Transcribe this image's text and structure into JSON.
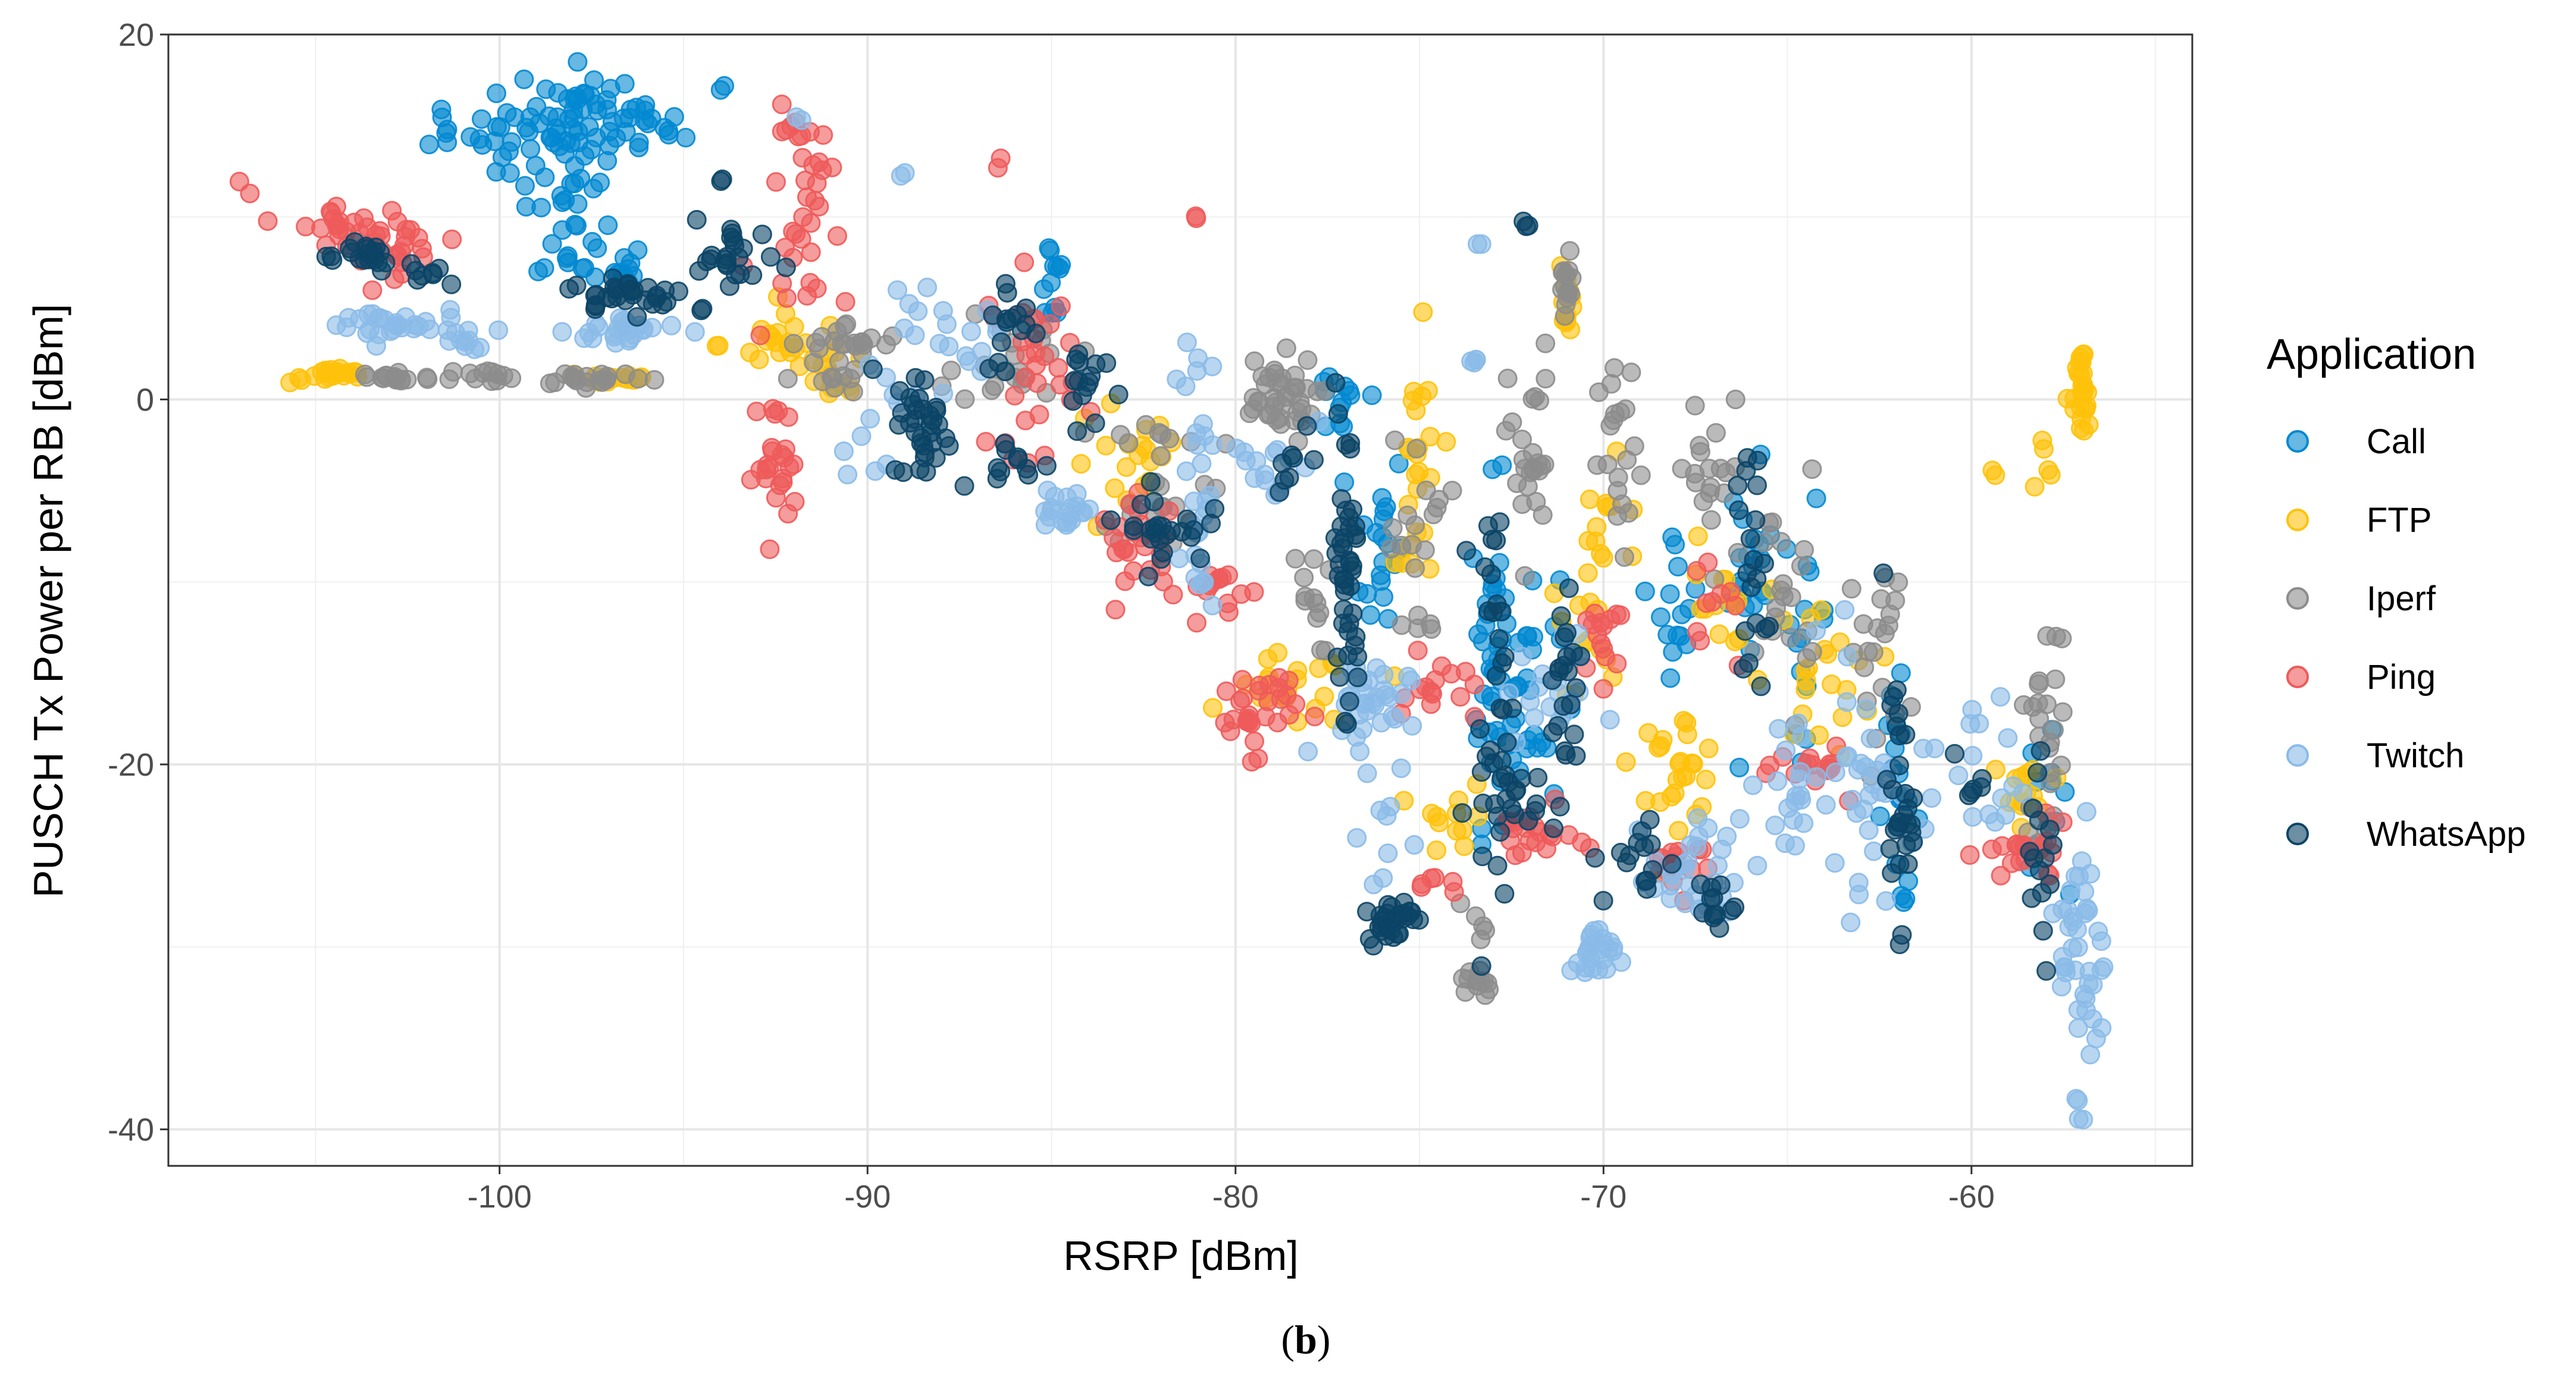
{
  "chart_data": {
    "type": "scatter",
    "title": "",
    "xlabel": "RSRP [dBm]",
    "ylabel": "PUSCH Tx Power per RB [dBm]",
    "xlim": [
      -109.0,
      -54.0
    ],
    "ylim": [
      -42.0,
      20.0
    ],
    "x_ticks": [
      -100,
      -90,
      -80,
      -70,
      -60
    ],
    "y_ticks": [
      -40,
      -20,
      0,
      20
    ],
    "grid": true,
    "legend": {
      "title": "Application",
      "position": "right"
    },
    "caption_open": "(",
    "caption_letter": "b",
    "caption_close": ")",
    "series": [
      {
        "name": "Call",
        "color": "#0288D1",
        "clusters": [
          {
            "x": -101.5,
            "y": 14.5,
            "xs": 0.2,
            "ys": 1.0,
            "n": 6
          },
          {
            "x": -99.0,
            "y": 14.5,
            "xs": 0.9,
            "ys": 1.5,
            "n": 40
          },
          {
            "x": -97.5,
            "y": 15.5,
            "xs": 0.6,
            "ys": 1.2,
            "n": 30
          },
          {
            "x": -96.0,
            "y": 14.8,
            "xs": 0.5,
            "ys": 0.8,
            "n": 15
          },
          {
            "x": -98.0,
            "y": 10.0,
            "xs": 0.5,
            "ys": 2.0,
            "n": 25
          },
          {
            "x": -97.0,
            "y": 7.0,
            "xs": 0.5,
            "ys": 0.8,
            "n": 15
          },
          {
            "x": -94.0,
            "y": 17.3,
            "xs": 0.1,
            "ys": 0.2,
            "n": 2
          },
          {
            "x": -85.0,
            "y": 6.5,
            "xs": 0.2,
            "ys": 1.6,
            "n": 12
          },
          {
            "x": -77.0,
            "y": 0.0,
            "xs": 0.6,
            "ys": 1.2,
            "n": 12
          },
          {
            "x": -76.0,
            "y": -8.0,
            "xs": 0.3,
            "ys": 3.0,
            "n": 20
          },
          {
            "x": -73.0,
            "y": -14.0,
            "xs": 0.3,
            "ys": 4.5,
            "n": 40
          },
          {
            "x": -72.0,
            "y": -16.0,
            "xs": 0.4,
            "ys": 3.5,
            "n": 25
          },
          {
            "x": -68.0,
            "y": -11.0,
            "xs": 0.3,
            "ys": 2.0,
            "n": 15
          },
          {
            "x": -66.0,
            "y": -10.0,
            "xs": 0.3,
            "ys": 3.0,
            "n": 20
          },
          {
            "x": -64.5,
            "y": -12.0,
            "xs": 0.3,
            "ys": 3.0,
            "n": 15
          },
          {
            "x": -62.0,
            "y": -22.0,
            "xs": 0.3,
            "ys": 3.0,
            "n": 20
          },
          {
            "x": -58.0,
            "y": -22.0,
            "xs": 0.3,
            "ys": 2.0,
            "n": 10
          }
        ]
      },
      {
        "name": "FTP",
        "color": "#FFC20A",
        "clusters": [
          {
            "x": -104.5,
            "y": 1.3,
            "xs": 0.6,
            "ys": 0.2,
            "n": 20
          },
          {
            "x": -97.0,
            "y": 1.2,
            "xs": 0.7,
            "ys": 0.2,
            "n": 15
          },
          {
            "x": -92.0,
            "y": 3.0,
            "xs": 1.0,
            "ys": 0.8,
            "n": 25
          },
          {
            "x": -91.0,
            "y": 1.0,
            "xs": 0.5,
            "ys": 0.8,
            "n": 10
          },
          {
            "x": -83.0,
            "y": -4.0,
            "xs": 0.8,
            "ys": 2.0,
            "n": 20
          },
          {
            "x": -78.5,
            "y": -16.0,
            "xs": 0.8,
            "ys": 1.0,
            "n": 20
          },
          {
            "x": -75.0,
            "y": -5.0,
            "xs": 0.3,
            "ys": 4.0,
            "n": 25
          },
          {
            "x": -74.0,
            "y": -23.0,
            "xs": 0.5,
            "ys": 1.0,
            "n": 12
          },
          {
            "x": -71.0,
            "y": 6.0,
            "xs": 0.1,
            "ys": 1.2,
            "n": 12
          },
          {
            "x": -70.0,
            "y": -10.0,
            "xs": 0.6,
            "ys": 3.0,
            "n": 25
          },
          {
            "x": -68.0,
            "y": -20.0,
            "xs": 0.6,
            "ys": 1.5,
            "n": 25
          },
          {
            "x": -67.0,
            "y": -12.0,
            "xs": 0.5,
            "ys": 2.0,
            "n": 15
          },
          {
            "x": -64.0,
            "y": -15.0,
            "xs": 0.7,
            "ys": 2.0,
            "n": 20
          },
          {
            "x": -59.5,
            "y": -4.0,
            "xs": 0.1,
            "ys": 0.2,
            "n": 2
          },
          {
            "x": -58.0,
            "y": -3.0,
            "xs": 0.3,
            "ys": 1.5,
            "n": 6
          },
          {
            "x": -57.0,
            "y": 0.0,
            "xs": 0.1,
            "ys": 1.5,
            "n": 25
          },
          {
            "x": -58.5,
            "y": -22.0,
            "xs": 0.5,
            "ys": 1.5,
            "n": 15
          }
        ]
      },
      {
        "name": "Iperf",
        "color": "#8C8C8C",
        "clusters": [
          {
            "x": -103.0,
            "y": 1.2,
            "xs": 0.6,
            "ys": 0.2,
            "n": 15
          },
          {
            "x": -100.0,
            "y": 1.3,
            "xs": 0.8,
            "ys": 0.2,
            "n": 12
          },
          {
            "x": -97.5,
            "y": 1.2,
            "xs": 0.8,
            "ys": 0.2,
            "n": 20
          },
          {
            "x": -90.5,
            "y": 3.0,
            "xs": 0.8,
            "ys": 0.6,
            "n": 20
          },
          {
            "x": -91.0,
            "y": 1.0,
            "xs": 0.4,
            "ys": 0.6,
            "n": 10
          },
          {
            "x": -86.0,
            "y": 2.5,
            "xs": 0.8,
            "ys": 1.5,
            "n": 20
          },
          {
            "x": -82.0,
            "y": -4.0,
            "xs": 0.8,
            "ys": 2.0,
            "n": 25
          },
          {
            "x": -79.0,
            "y": 0.0,
            "xs": 0.6,
            "ys": 1.2,
            "n": 40
          },
          {
            "x": -78.0,
            "y": -11.0,
            "xs": 0.3,
            "ys": 1.5,
            "n": 12
          },
          {
            "x": -75.0,
            "y": -8.0,
            "xs": 0.4,
            "ys": 3.0,
            "n": 20
          },
          {
            "x": -73.5,
            "y": -32.0,
            "xs": 0.2,
            "ys": 0.5,
            "n": 12
          },
          {
            "x": -73.5,
            "y": -28.0,
            "xs": 0.2,
            "ys": 1.0,
            "n": 5
          },
          {
            "x": -72.0,
            "y": -3.0,
            "xs": 0.3,
            "ys": 3.0,
            "n": 25
          },
          {
            "x": -71.0,
            "y": 6.0,
            "xs": 0.1,
            "ys": 1.0,
            "n": 15
          },
          {
            "x": -69.5,
            "y": -4.0,
            "xs": 0.3,
            "ys": 3.0,
            "n": 20
          },
          {
            "x": -67.0,
            "y": -5.0,
            "xs": 0.6,
            "ys": 3.0,
            "n": 20
          },
          {
            "x": -65.0,
            "y": -10.0,
            "xs": 0.4,
            "ys": 3.0,
            "n": 20
          },
          {
            "x": -62.5,
            "y": -14.0,
            "xs": 0.4,
            "ys": 3.0,
            "n": 20
          },
          {
            "x": -58.0,
            "y": -18.0,
            "xs": 0.3,
            "ys": 3.0,
            "n": 25
          }
        ]
      },
      {
        "name": "Ping",
        "color": "#EE5A5A",
        "clusters": [
          {
            "x": -107.0,
            "y": 11.5,
            "xs": 0.1,
            "ys": 0.2,
            "n": 2
          },
          {
            "x": -104.5,
            "y": 9.5,
            "xs": 0.6,
            "ys": 0.7,
            "n": 15
          },
          {
            "x": -103.0,
            "y": 8.5,
            "xs": 1.0,
            "ys": 0.8,
            "n": 30
          },
          {
            "x": -92.5,
            "y": -3.5,
            "xs": 0.3,
            "ys": 1.8,
            "n": 25
          },
          {
            "x": -91.5,
            "y": 12.0,
            "xs": 0.6,
            "ys": 2.0,
            "n": 25
          },
          {
            "x": -91.5,
            "y": 7.0,
            "xs": 0.5,
            "ys": 2.0,
            "n": 12
          },
          {
            "x": -85.5,
            "y": 2.0,
            "xs": 0.6,
            "ys": 2.5,
            "n": 30
          },
          {
            "x": -86.5,
            "y": 13.0,
            "xs": 0.1,
            "ys": 0.2,
            "n": 2
          },
          {
            "x": -82.5,
            "y": -8.0,
            "xs": 0.6,
            "ys": 1.2,
            "n": 25
          },
          {
            "x": -80.5,
            "y": -10.5,
            "xs": 0.5,
            "ys": 0.8,
            "n": 15
          },
          {
            "x": -81.0,
            "y": 10.0,
            "xs": 0.1,
            "ys": 0.2,
            "n": 2
          },
          {
            "x": -79.5,
            "y": -17.0,
            "xs": 0.6,
            "ys": 1.2,
            "n": 30
          },
          {
            "x": -74.5,
            "y": -16.0,
            "xs": 0.5,
            "ys": 1.0,
            "n": 15
          },
          {
            "x": -74.5,
            "y": -26.5,
            "xs": 0.3,
            "ys": 0.3,
            "n": 6
          },
          {
            "x": -72.0,
            "y": -24.0,
            "xs": 0.6,
            "ys": 0.8,
            "n": 20
          },
          {
            "x": -70.0,
            "y": -13.0,
            "xs": 0.4,
            "ys": 1.2,
            "n": 15
          },
          {
            "x": -68.0,
            "y": -25.0,
            "xs": 0.5,
            "ys": 1.0,
            "n": 15
          },
          {
            "x": -67.0,
            "y": -13.0,
            "xs": 0.4,
            "ys": 1.5,
            "n": 10
          },
          {
            "x": -64.0,
            "y": -20.0,
            "xs": 0.6,
            "ys": 0.8,
            "n": 15
          },
          {
            "x": -58.5,
            "y": -25.0,
            "xs": 0.6,
            "ys": 0.8,
            "n": 20
          }
        ]
      },
      {
        "name": "Twitch",
        "color": "#8BBBE8",
        "clusters": [
          {
            "x": -103.0,
            "y": 4.0,
            "xs": 1.0,
            "ys": 0.5,
            "n": 30
          },
          {
            "x": -101.0,
            "y": 3.0,
            "xs": 0.5,
            "ys": 0.3,
            "n": 8
          },
          {
            "x": -96.5,
            "y": 3.8,
            "xs": 0.8,
            "ys": 0.5,
            "n": 25
          },
          {
            "x": -92.0,
            "y": 15.3,
            "xs": 0.1,
            "ys": 0.2,
            "n": 2
          },
          {
            "x": -89.0,
            "y": 12.5,
            "xs": 0.1,
            "ys": 0.2,
            "n": 2
          },
          {
            "x": -88.0,
            "y": 3.0,
            "xs": 0.8,
            "ys": 1.2,
            "n": 20
          },
          {
            "x": -90.0,
            "y": -1.0,
            "xs": 0.6,
            "ys": 1.5,
            "n": 10
          },
          {
            "x": -84.5,
            "y": -6.0,
            "xs": 0.5,
            "ys": 0.6,
            "n": 20
          },
          {
            "x": -81.0,
            "y": -4.0,
            "xs": 0.2,
            "ys": 4.0,
            "n": 30
          },
          {
            "x": -79.0,
            "y": -3.0,
            "xs": 0.6,
            "ys": 1.5,
            "n": 15
          },
          {
            "x": -76.5,
            "y": -17.0,
            "xs": 0.6,
            "ys": 1.5,
            "n": 35
          },
          {
            "x": -76.0,
            "y": -24.0,
            "xs": 0.3,
            "ys": 1.5,
            "n": 8
          },
          {
            "x": -73.5,
            "y": 8.5,
            "xs": 0.1,
            "ys": 0.2,
            "n": 2
          },
          {
            "x": -73.5,
            "y": 2.0,
            "xs": 0.1,
            "ys": 1.0,
            "n": 4
          },
          {
            "x": -71.5,
            "y": -16.0,
            "xs": 0.6,
            "ys": 1.5,
            "n": 20
          },
          {
            "x": -70.3,
            "y": -30.5,
            "xs": 0.3,
            "ys": 0.8,
            "n": 25
          },
          {
            "x": -67.5,
            "y": -26.0,
            "xs": 0.6,
            "ys": 1.5,
            "n": 30
          },
          {
            "x": -65.0,
            "y": -22.0,
            "xs": 0.5,
            "ys": 2.5,
            "n": 20
          },
          {
            "x": -63.0,
            "y": -20.0,
            "xs": 0.5,
            "ys": 4.0,
            "n": 30
          },
          {
            "x": -60.0,
            "y": -21.0,
            "xs": 0.8,
            "ys": 2.5,
            "n": 20
          },
          {
            "x": -57.0,
            "y": -30.0,
            "xs": 0.3,
            "ys": 3.5,
            "n": 40
          },
          {
            "x": -56.5,
            "y": -34.5,
            "xs": 0.2,
            "ys": 0.5,
            "n": 3
          },
          {
            "x": -57.0,
            "y": -39.3,
            "xs": 0.1,
            "ys": 0.2,
            "n": 2
          }
        ]
      },
      {
        "name": "WhatsApp",
        "color": "#0B4466",
        "clusters": [
          {
            "x": -104.0,
            "y": 8.0,
            "xs": 0.7,
            "ys": 0.5,
            "n": 20
          },
          {
            "x": -102.0,
            "y": 7.0,
            "xs": 0.5,
            "ys": 0.4,
            "n": 8
          },
          {
            "x": -96.5,
            "y": 5.8,
            "xs": 0.8,
            "ys": 0.5,
            "n": 30
          },
          {
            "x": -93.5,
            "y": 7.5,
            "xs": 0.6,
            "ys": 1.2,
            "n": 25
          },
          {
            "x": -94.0,
            "y": 12.0,
            "xs": 0.1,
            "ys": 0.2,
            "n": 2
          },
          {
            "x": -88.5,
            "y": -1.5,
            "xs": 0.4,
            "ys": 1.5,
            "n": 35
          },
          {
            "x": -86.0,
            "y": 4.0,
            "xs": 0.4,
            "ys": 1.5,
            "n": 15
          },
          {
            "x": -86.0,
            "y": -3.5,
            "xs": 0.5,
            "ys": 0.8,
            "n": 10
          },
          {
            "x": -84.0,
            "y": 1.5,
            "xs": 0.3,
            "ys": 1.5,
            "n": 15
          },
          {
            "x": -82.0,
            "y": -7.0,
            "xs": 0.6,
            "ys": 1.0,
            "n": 25
          },
          {
            "x": -78.5,
            "y": -3.0,
            "xs": 0.4,
            "ys": 1.0,
            "n": 8
          },
          {
            "x": -77.0,
            "y": -10.0,
            "xs": 0.2,
            "ys": 5.0,
            "n": 45
          },
          {
            "x": -75.8,
            "y": -28.5,
            "xs": 0.3,
            "ys": 0.6,
            "n": 30
          },
          {
            "x": -73.0,
            "y": -16.0,
            "xs": 0.3,
            "ys": 5.0,
            "n": 35
          },
          {
            "x": -72.0,
            "y": 9.5,
            "xs": 0.1,
            "ys": 0.2,
            "n": 3
          },
          {
            "x": -72.0,
            "y": -22.0,
            "xs": 0.6,
            "ys": 1.0,
            "n": 15
          },
          {
            "x": -71.0,
            "y": -15.0,
            "xs": 0.2,
            "ys": 3.0,
            "n": 20
          },
          {
            "x": -69.0,
            "y": -25.5,
            "xs": 0.5,
            "ys": 1.2,
            "n": 15
          },
          {
            "x": -67.0,
            "y": -27.5,
            "xs": 0.3,
            "ys": 0.8,
            "n": 12
          },
          {
            "x": -66.0,
            "y": -10.0,
            "xs": 0.2,
            "ys": 4.0,
            "n": 20
          },
          {
            "x": -62.0,
            "y": -22.0,
            "xs": 0.2,
            "ys": 3.5,
            "n": 30
          },
          {
            "x": -60.0,
            "y": -21.0,
            "xs": 0.3,
            "ys": 0.8,
            "n": 6
          },
          {
            "x": -58.0,
            "y": -25.0,
            "xs": 0.2,
            "ys": 2.5,
            "n": 15
          }
        ]
      }
    ]
  }
}
